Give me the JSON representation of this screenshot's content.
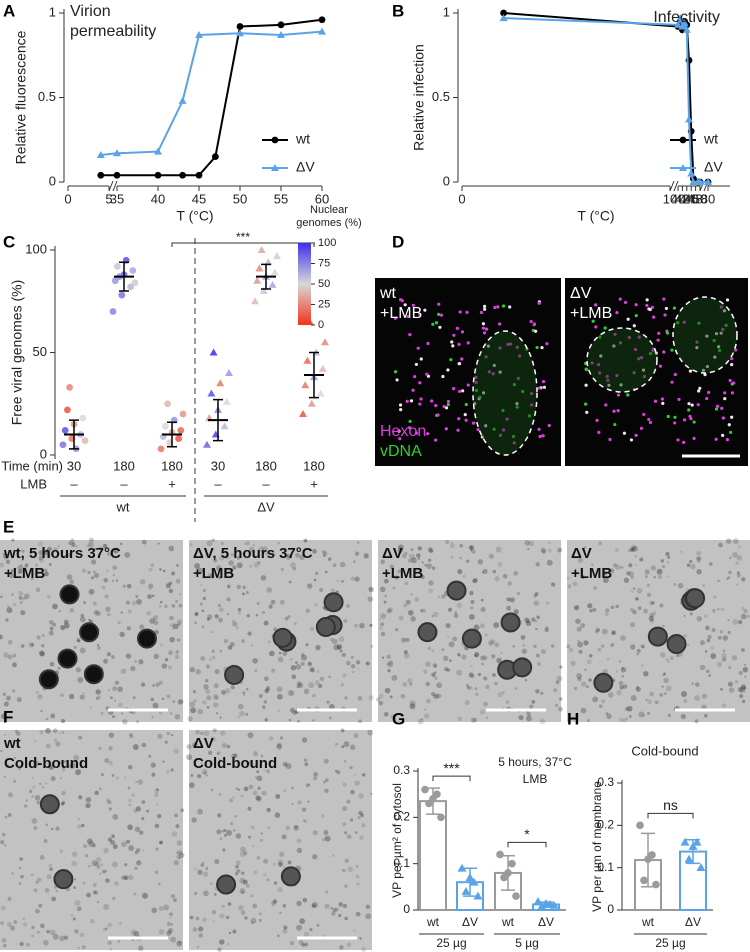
{
  "figure": {
    "panel_letters": [
      "A",
      "B",
      "C",
      "D",
      "E",
      "F",
      "G",
      "H"
    ],
    "D": {
      "images": [
        [
          "wt",
          "+LMB"
        ],
        [
          "ΔV",
          "+LMB"
        ]
      ],
      "channels": [
        "Hexon",
        "vDNA"
      ],
      "channel_colors": [
        "#e23de2",
        "#2fd02f"
      ]
    },
    "E": {
      "images": [
        [
          "wt, 5 hours 37°C",
          "+LMB"
        ],
        [
          "ΔV, 5 hours 37°C",
          "+LMB"
        ],
        [
          "ΔV",
          "+LMB"
        ],
        [
          "ΔV",
          "+LMB"
        ]
      ]
    },
    "F": {
      "images": [
        [
          "wt",
          "Cold-bound"
        ],
        [
          "ΔV",
          "Cold-bound"
        ]
      ]
    }
  },
  "chart_data": [
    {
      "type": "line",
      "title": "Virion permeability",
      "ylabel": "Relative fluorescence",
      "xlabel": "T (°C)",
      "xlim": [
        0,
        60
      ],
      "xbreaks": [
        [
          5,
          35
        ]
      ],
      "xticks": [
        0,
        5,
        35,
        40,
        45,
        50,
        55,
        60
      ],
      "ylim": [
        0,
        1
      ],
      "yticks": [
        0,
        0.5,
        1
      ],
      "legend": "lower right",
      "series": [
        {
          "name": "wt",
          "color": "#000000",
          "marker": "circle",
          "x": [
            4,
            35,
            40,
            43,
            45,
            47,
            50,
            55,
            60
          ],
          "values": [
            0.04,
            0.04,
            0.04,
            0.04,
            0.04,
            0.15,
            0.92,
            0.93,
            0.96
          ]
        },
        {
          "name": "ΔV",
          "color": "#5aa3e6",
          "marker": "triangle",
          "x": [
            4,
            35,
            40,
            43,
            45,
            50,
            55,
            60
          ],
          "values": [
            0.16,
            0.17,
            0.18,
            0.48,
            0.87,
            0.88,
            0.87,
            0.89
          ]
        }
      ]
    },
    {
      "type": "line",
      "title": "Infectivity",
      "ylabel": "Relative infection",
      "xlabel": "T (°C)",
      "xlim": [
        0,
        82
      ],
      "xbreaks": [
        [
          10,
          40
        ],
        [
          50,
          80
        ]
      ],
      "xticks": [
        0,
        10,
        40,
        42,
        44,
        46,
        48,
        50,
        80
      ],
      "ylim": [
        0,
        1
      ],
      "yticks": [
        0,
        0.5,
        1
      ],
      "legend": "lower right",
      "series": [
        {
          "name": "wt",
          "color": "#000000",
          "marker": "circle",
          "x": [
            2,
            40,
            41,
            42,
            43,
            44,
            45,
            46,
            47,
            49,
            50,
            80
          ],
          "values": [
            1,
            0.92,
            0.95,
            0.9,
            0.95,
            0.93,
            0.72,
            0.3,
            0.02,
            0,
            0,
            0
          ]
        },
        {
          "name": "ΔV",
          "color": "#5aa3e6",
          "marker": "triangle",
          "x": [
            2,
            40,
            41,
            42,
            43,
            44,
            45,
            46,
            47,
            49,
            50,
            80
          ],
          "values": [
            0.97,
            0.93,
            0.97,
            0.92,
            0.94,
            0.9,
            0.37,
            0.05,
            0,
            0,
            0,
            0
          ]
        }
      ]
    },
    {
      "type": "strip",
      "ylabel": "Free viral genomes (%)",
      "ylim": [
        0,
        100
      ],
      "yticks": [
        0,
        50,
        100
      ],
      "row_labels": [
        "Time (min)",
        "LMB"
      ],
      "groups": [
        {
          "time": "30",
          "lmb": "–",
          "marker": "circle",
          "values": [
            5,
            8,
            10,
            12,
            15,
            18,
            22,
            3,
            7,
            33
          ],
          "nuclear": [
            80,
            20,
            60,
            90,
            30,
            50,
            10,
            70,
            40,
            25
          ],
          "mean": 10,
          "sd": 7
        },
        {
          "time": "180",
          "lmb": "–",
          "marker": "circle",
          "values": [
            70,
            78,
            82,
            85,
            88,
            90,
            92,
            95,
            84,
            87
          ],
          "nuclear": [
            75,
            80,
            60,
            70,
            85,
            65,
            55,
            90,
            45,
            72
          ],
          "mean": 87,
          "sd": 7
        },
        {
          "time": "180",
          "lmb": "+",
          "marker": "circle",
          "values": [
            3,
            6,
            8,
            9,
            11,
            12,
            14,
            17,
            20,
            25
          ],
          "nuclear": [
            20,
            45,
            10,
            60,
            35,
            15,
            50,
            70,
            30,
            40
          ],
          "mean": 10,
          "sd": 6
        },
        {
          "time": "30",
          "lmb": "–",
          "marker": "triangle",
          "values": [
            5,
            10,
            14,
            18,
            22,
            26,
            30,
            35,
            40,
            50
          ],
          "nuclear": [
            85,
            95,
            60,
            30,
            75,
            50,
            90,
            20,
            70,
            100
          ],
          "mean": 17,
          "sd": 10
        },
        {
          "time": "180",
          "lmb": "–",
          "marker": "triangle",
          "values": [
            75,
            80,
            83,
            85,
            87,
            89,
            91,
            94,
            97,
            100
          ],
          "nuclear": [
            40,
            55,
            65,
            30,
            70,
            50,
            25,
            60,
            45,
            35
          ],
          "mean": 87,
          "sd": 6
        },
        {
          "time": "180",
          "lmb": "+",
          "marker": "triangle",
          "values": [
            20,
            25,
            30,
            34,
            38,
            42,
            46,
            50,
            55,
            65
          ],
          "nuclear": [
            10,
            30,
            50,
            20,
            70,
            40,
            15,
            60,
            25,
            5
          ],
          "mean": 39,
          "sd": 11
        }
      ],
      "conditions": [
        {
          "label": "wt",
          "from": 0,
          "to": 2
        },
        {
          "label": "ΔV",
          "from": 3,
          "to": 5
        }
      ],
      "significance": [
        {
          "from": 2,
          "to": 5,
          "label": "***"
        }
      ],
      "colorbar": {
        "title": "Nuclear genomes (%)",
        "lim": [
          0,
          100
        ],
        "ticks": [
          0,
          25,
          50,
          75,
          100
        ],
        "colors": [
          "#f2331c",
          "#d8d8d8",
          "#3b30ea"
        ]
      }
    },
    {
      "type": "bar",
      "ylabel": "VP per µm² of cytosol",
      "ylim": [
        0,
        0.3
      ],
      "yticks": [
        0,
        0.1,
        0.2,
        0.3
      ],
      "categories": [
        "wt",
        "ΔV",
        "wt",
        "ΔV"
      ],
      "colors": [
        "#9b9b9b",
        "#5aa3e6",
        "#9b9b9b",
        "#5aa3e6"
      ],
      "markers": [
        "circle",
        "triangle",
        "circle",
        "triangle"
      ],
      "values": [
        0.235,
        0.06,
        0.08,
        0.012
      ],
      "errors": [
        0.028,
        0.03,
        0.037,
        0.005
      ],
      "points": [
        [
          0.26,
          0.25,
          0.23,
          0.2,
          0.24
        ],
        [
          0.09,
          0.06,
          0.04,
          0.03,
          0.07
        ],
        [
          0.12,
          0.1,
          0.07,
          0.03,
          0.08
        ],
        [
          0.018,
          0.012,
          0.008,
          0.01,
          0.014
        ]
      ],
      "groups": [
        {
          "label": "25 µg",
          "from": 0,
          "to": 1
        },
        {
          "label": "5 µg",
          "from": 2,
          "to": 3
        }
      ],
      "significance": [
        {
          "from": 0,
          "to": 1,
          "label": "***"
        },
        {
          "from": 2,
          "to": 3,
          "label": "*"
        }
      ],
      "note": [
        "5 hours, 37°C",
        "LMB"
      ]
    },
    {
      "type": "bar",
      "title": "Cold-bound",
      "ylabel": "VP per µm of membrane",
      "ylim": [
        0,
        0.3
      ],
      "yticks": [
        0,
        0.1,
        0.2,
        0.3
      ],
      "categories": [
        "wt",
        "ΔV"
      ],
      "colors": [
        "#9b9b9b",
        "#5aa3e6"
      ],
      "markers": [
        "circle",
        "triangle"
      ],
      "values": [
        0.118,
        0.138
      ],
      "errors": [
        0.063,
        0.028
      ],
      "points": [
        [
          0.2,
          0.13,
          0.07,
          0.06,
          0.12
        ],
        [
          0.16,
          0.16,
          0.12,
          0.1,
          0.15
        ]
      ],
      "groups": [
        {
          "label": "25 µg",
          "from": 0,
          "to": 1
        }
      ],
      "significance": [
        {
          "from": 0,
          "to": 1,
          "label": "ns"
        }
      ]
    }
  ]
}
